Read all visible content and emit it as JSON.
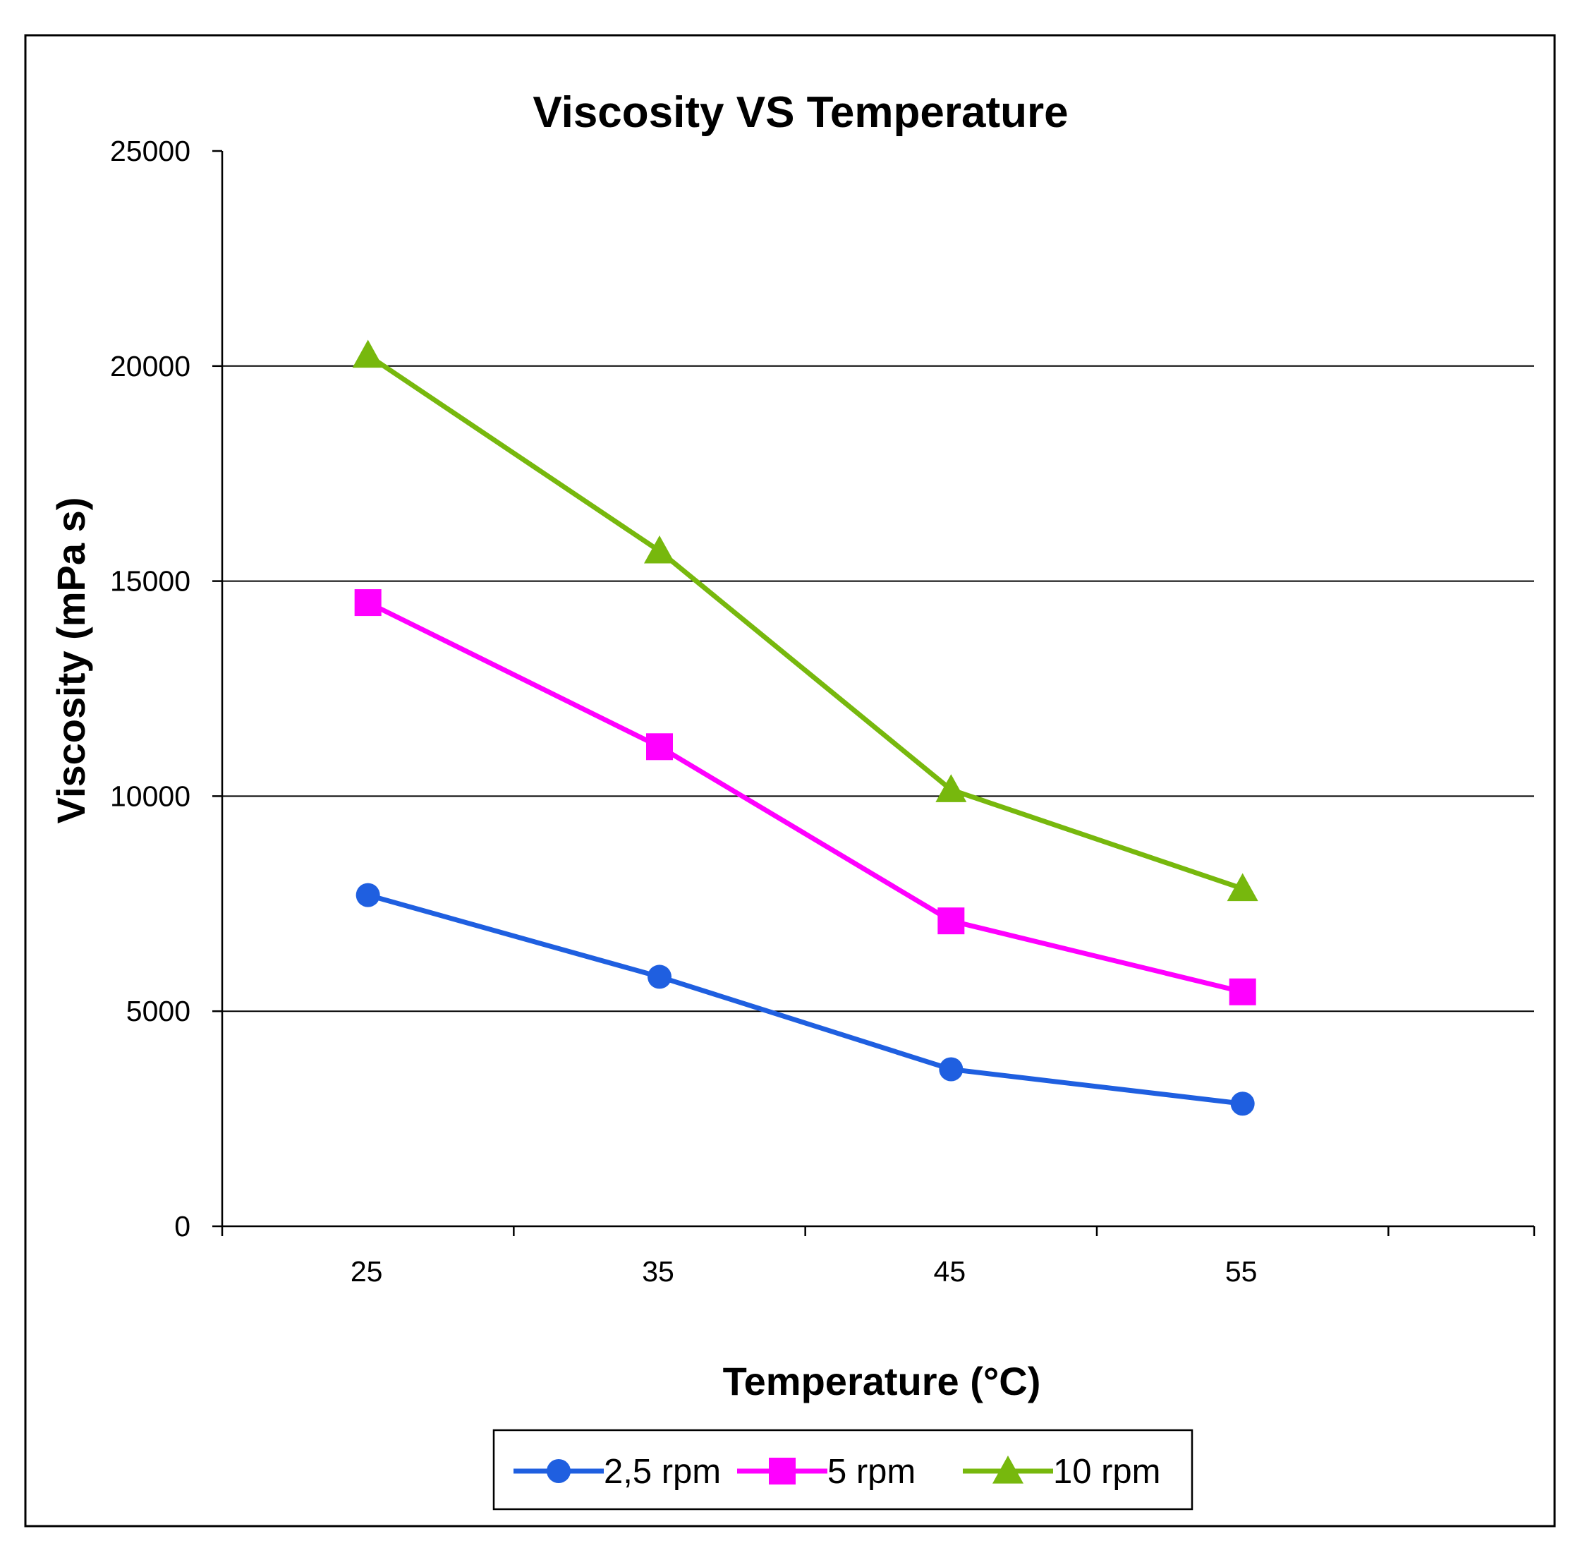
{
  "chart_data": {
    "type": "line",
    "title": "Viscosity VS Temperature",
    "xlabel": "Temperature  (°C)",
    "ylabel": "Viscosity (mPa s)",
    "categories": [
      "25",
      "35",
      "45",
      "55"
    ],
    "x": [
      25,
      35,
      45,
      55
    ],
    "ylim": [
      0,
      25000
    ],
    "yticks": [
      "0",
      "5000",
      "10000",
      "15000",
      "20000",
      "25000"
    ],
    "grid": true,
    "legend_position": "bottom",
    "series": [
      {
        "name": "2,5 rpm",
        "marker": "circle",
        "color": "#1F5FE0",
        "values": [
          7700,
          5800,
          3650,
          2850
        ]
      },
      {
        "name": "5 rpm",
        "marker": "square",
        "color": "#FF00FF",
        "values": [
          14500,
          11150,
          7100,
          5450
        ]
      },
      {
        "name": "10 rpm",
        "marker": "triangle",
        "color": "#77B80D",
        "values": [
          20250,
          15700,
          10150,
          7850
        ]
      }
    ]
  }
}
